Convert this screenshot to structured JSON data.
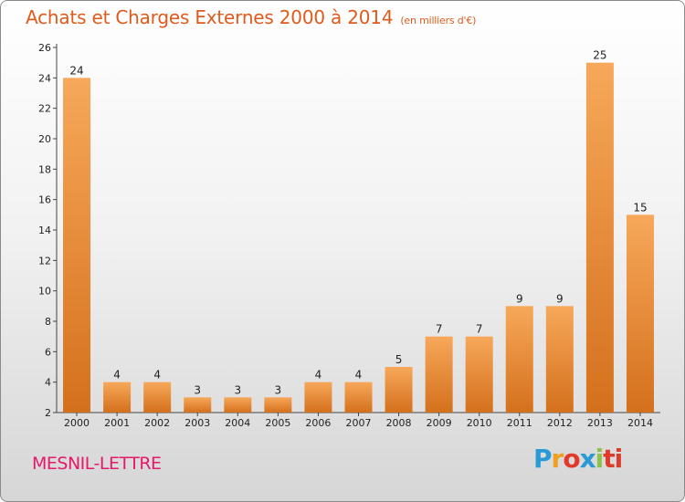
{
  "header": {
    "title": "Achats et Charges Externes 2000 à 2014",
    "unit": "(en milliers d'€)"
  },
  "footer": {
    "commune": "MESNIL-LETTRE",
    "logo_letters": [
      "P",
      "r",
      "o",
      "x",
      "i",
      "ti"
    ]
  },
  "colors": {
    "title": "#e05a1c",
    "commune": "#e5186a",
    "bar_light": "#f7a85a",
    "bar_dark": "#d4701c"
  },
  "chart_data": {
    "type": "bar",
    "title": "Achats et Charges Externes 2000 à 2014",
    "xlabel": "",
    "ylabel": "",
    "ylim": [
      2,
      26
    ],
    "yticks": [
      2,
      4,
      6,
      8,
      10,
      12,
      14,
      16,
      18,
      20,
      22,
      24,
      26
    ],
    "grid": false,
    "categories": [
      "2000",
      "2001",
      "2002",
      "2003",
      "2004",
      "2005",
      "2006",
      "2007",
      "2008",
      "2009",
      "2010",
      "2011",
      "2012",
      "2013",
      "2014"
    ],
    "values": [
      24,
      4,
      4,
      3,
      3,
      3,
      4,
      4,
      5,
      7,
      7,
      9,
      9,
      25,
      15
    ]
  }
}
